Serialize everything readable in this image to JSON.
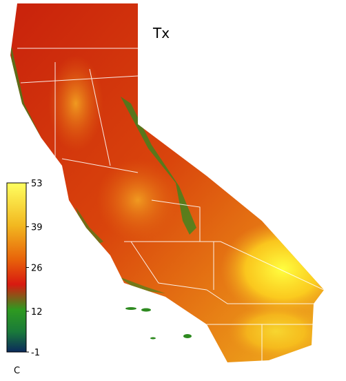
{
  "map": {
    "title": "Tx",
    "colorbar": {
      "lim": [
        -1,
        53
      ],
      "ticks": [
        53,
        39,
        26,
        12,
        -1
      ],
      "unit": "C"
    }
  }
}
